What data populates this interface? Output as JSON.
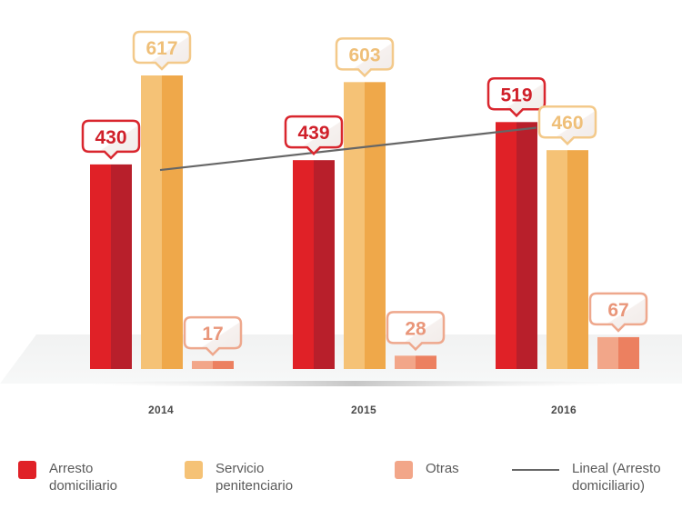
{
  "chart_data": {
    "type": "bar",
    "title": "",
    "xlabel": "",
    "ylabel": "",
    "ylim": [
      0,
      617
    ],
    "grid": false,
    "categories": [
      "2014",
      "2015",
      "2016"
    ],
    "series": [
      {
        "name": "Arresto domiciliario",
        "values": [
          430,
          439,
          519
        ],
        "color": "#e02127",
        "shade": "#b81f2b"
      },
      {
        "name": "Servicio penitenciario",
        "values": [
          617,
          603,
          460
        ],
        "color": "#f5c276",
        "shade": "#efa84a"
      },
      {
        "name": "Otras",
        "values": [
          17,
          28,
          67
        ],
        "color": "#f2a689",
        "shade": "#ec8060"
      }
    ],
    "trendline": {
      "name": "Lineal (Arresto domiciliario)",
      "type": "linear",
      "of_series": "Arresto domiciliario",
      "color": "#666666"
    },
    "data_labels": [
      [
        "430",
        "617",
        "17"
      ],
      [
        "439",
        "603",
        "28"
      ],
      [
        "519",
        "460",
        "67"
      ]
    ],
    "legend": {
      "placement": "bottom",
      "items": [
        {
          "label": "Arresto\ndomiciliario",
          "kind": "swatch",
          "color": "#e02127"
        },
        {
          "label": "Servicio\npenitenciario",
          "kind": "swatch",
          "color": "#f5c276"
        },
        {
          "label": "Otras",
          "kind": "swatch",
          "color": "#f2a689"
        },
        {
          "label": "Lineal (Arresto\ndomiciliario)",
          "kind": "line",
          "color": "#666666"
        }
      ]
    }
  }
}
